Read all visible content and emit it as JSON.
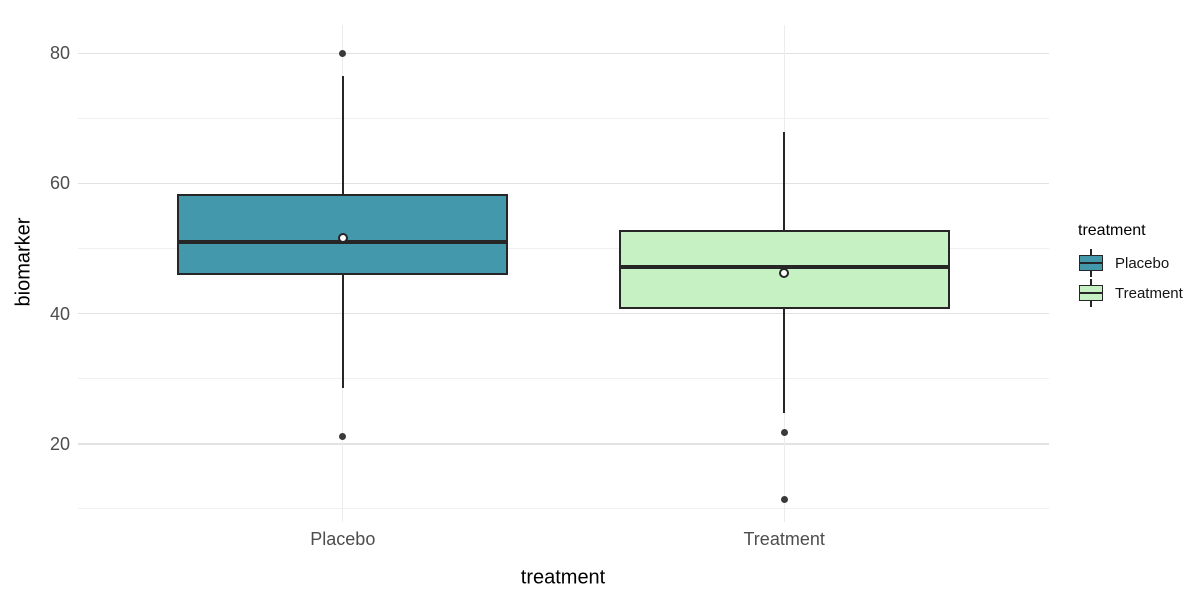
{
  "chart_data": {
    "type": "boxplot",
    "title": "",
    "xlabel": "treatment",
    "ylabel": "biomarker",
    "categories": [
      "Placebo",
      "Treatment"
    ],
    "series": [
      {
        "name": "Placebo",
        "fill": "#4398AB",
        "q1": 45.9,
        "median": 51.0,
        "q3": 58.4,
        "whisker_low": 28.6,
        "whisker_high": 76.4,
        "mean": 51.6,
        "outliers": [
          80.0,
          21.1
        ]
      },
      {
        "name": "Treatment",
        "fill": "#C6F2C3",
        "q1": 40.7,
        "median": 47.1,
        "q3": 52.8,
        "whisker_low": 24.7,
        "whisker_high": 67.9,
        "mean": 46.3,
        "outliers": [
          21.8,
          11.4
        ]
      }
    ],
    "ylim": [
      8.0,
      84.3
    ],
    "y_major_ticks": [
      20,
      40,
      60,
      80
    ],
    "y_minor_ticks": [
      10,
      30,
      50,
      70
    ],
    "grid": "on",
    "legend": {
      "title": "treatment",
      "position": "right",
      "entries": [
        {
          "label": "Placebo",
          "fill": "#4398AB"
        },
        {
          "label": "Treatment",
          "fill": "#C6F2C3"
        }
      ]
    },
    "colors": {
      "box_border": "#262626",
      "median_line": "#262626",
      "whisker": "#262626",
      "outlier": "#3a3a3a",
      "mean_fill": "#ffffff",
      "mean_border": "#262626",
      "grid_major": "#e2e2e2",
      "grid_minor": "#f0f0f0",
      "grid_x_major": "#ececec",
      "axis_text": "#4d4d4d",
      "title_text": "#000000",
      "background": "#ffffff"
    }
  }
}
